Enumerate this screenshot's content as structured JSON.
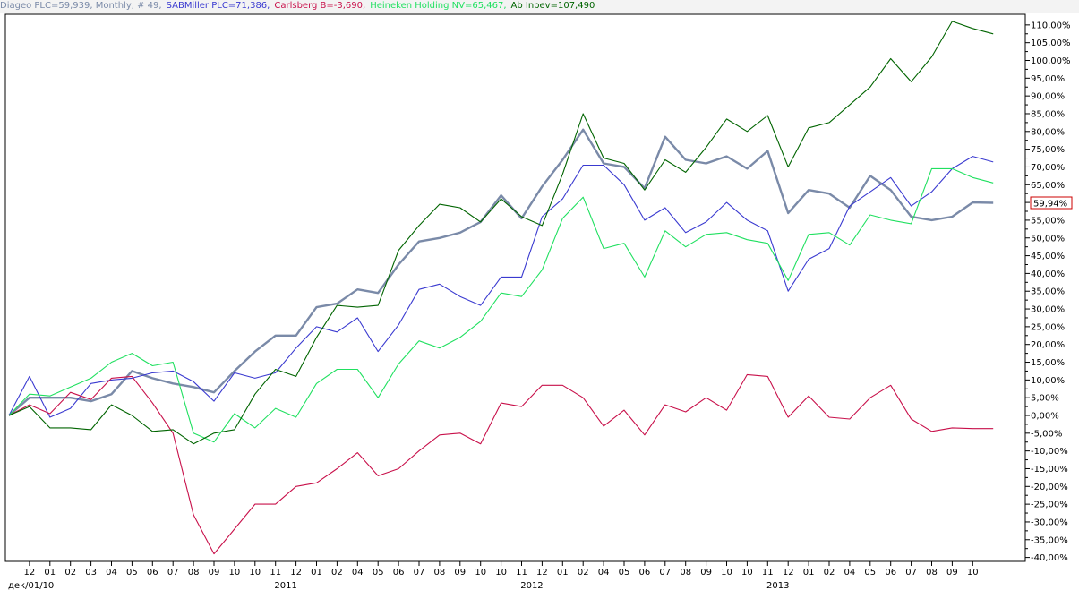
{
  "legend": {
    "items": [
      {
        "label": "Diageo PLC=59,939, Monthly, # 49,",
        "color": "#7a8aa8"
      },
      {
        "label": "SABMiller PLC=71,386,",
        "color": "#3a3ad0"
      },
      {
        "label": "Carlsberg B=-3,690,",
        "color": "#c8104a"
      },
      {
        "label": "Heineken Holding NV=65,467,",
        "color": "#20e060"
      },
      {
        "label": "Ab Inbev=107,490",
        "color": "#006400"
      }
    ]
  },
  "last_value_label": "59,94%",
  "chart_data": {
    "type": "line",
    "title": "",
    "xlabel": "",
    "ylabel": "",
    "ylim": [
      -40,
      112
    ],
    "grid": false,
    "legend_placement": "top",
    "y_ticks": [
      "110,00%",
      "105,00%",
      "100,00%",
      "95,00%",
      "90,00%",
      "85,00%",
      "80,00%",
      "75,00%",
      "70,00%",
      "65,00%",
      "60,00%",
      "55,00%",
      "50,00%",
      "45,00%",
      "40,00%",
      "35,00%",
      "30,00%",
      "25,00%",
      "20,00%",
      "15,00%",
      "10,00%",
      "5,00%",
      "0,00%",
      "-5,00%",
      "-10,00%",
      "-15,00%",
      "-20,00%",
      "-25,00%",
      "-30,00%",
      "-35,00%",
      "-40,00%"
    ],
    "x_ticks": [
      "12",
      "01",
      "02",
      "03",
      "04",
      "05",
      "06",
      "07",
      "08",
      "09",
      "10",
      "10",
      "11",
      "12",
      "01",
      "02",
      "04",
      "05",
      "06",
      "07",
      "08",
      "09",
      "10",
      "10",
      "11",
      "12",
      "01",
      "02",
      "04",
      "05",
      "06",
      "07",
      "08",
      "09",
      "10",
      "10",
      "11",
      "12",
      "01",
      "02",
      "04",
      "05",
      "06",
      "07",
      "08",
      "09",
      "10"
    ],
    "x_start_label": "дек/01/10",
    "year_labels": [
      {
        "label": "2011",
        "after_tick": 13.5
      },
      {
        "label": "2012",
        "after_tick": 25.5
      },
      {
        "label": "2013",
        "after_tick": 37.5
      }
    ],
    "series": [
      {
        "name": "Diageo PLC",
        "color": "#7a8aa8",
        "width": 2.4,
        "values": [
          0,
          5,
          5,
          5,
          4,
          6,
          12.5,
          10.5,
          9,
          8,
          6.5,
          12.5,
          18,
          22.5,
          22.5,
          30.5,
          31.5,
          35.5,
          34.5,
          42.5,
          49,
          50,
          51.5,
          54.5,
          62,
          55.5,
          64.5,
          72,
          80.5,
          71,
          70,
          64,
          78.5,
          72,
          71,
          73,
          69.5,
          74.5,
          57,
          63.5,
          62.5,
          58.5,
          67.5,
          63.5,
          56,
          55,
          56,
          60,
          59.9
        ]
      },
      {
        "name": "SABMiller PLC",
        "color": "#3a3ad0",
        "width": 1.1,
        "values": [
          0,
          11,
          -0.5,
          2,
          9,
          10,
          10.5,
          12,
          12.5,
          9.5,
          4,
          12,
          10.5,
          12,
          19,
          25,
          23.5,
          27.5,
          18,
          25.5,
          35.5,
          37,
          33.5,
          31,
          39,
          39,
          56,
          61,
          70.5,
          70.5,
          65,
          55,
          58.5,
          51.5,
          54.5,
          60,
          55,
          52,
          35,
          44,
          47,
          59,
          63,
          67,
          59,
          63,
          69.5,
          73,
          71.4
        ]
      },
      {
        "name": "Carlsberg B",
        "color": "#c8104a",
        "width": 1.1,
        "values": [
          0,
          3,
          0.5,
          6.5,
          4.5,
          10.5,
          11,
          3.5,
          -5,
          -28,
          -39,
          -32,
          -25,
          -25,
          -20,
          -19,
          -15,
          -10.5,
          -17,
          -15,
          -10,
          -5.5,
          -5,
          -8,
          3.5,
          2.5,
          8.5,
          8.5,
          5,
          -3,
          1.5,
          -5.5,
          3,
          1,
          5,
          1.5,
          11.5,
          11,
          -0.5,
          5.5,
          -0.5,
          -1,
          5,
          8.5,
          -1,
          -4.5,
          -3.5,
          -3.7,
          -3.7
        ]
      },
      {
        "name": "Heineken Holding NV",
        "color": "#20e060",
        "width": 1.1,
        "values": [
          0,
          6,
          5.5,
          8,
          10.5,
          15,
          17.5,
          14,
          15,
          -5,
          -7.5,
          0.5,
          -3.5,
          2,
          -0.5,
          9,
          13,
          13,
          5,
          14.5,
          21,
          19,
          22,
          26.5,
          34.5,
          33.5,
          41,
          55.5,
          61.5,
          47,
          48.5,
          39,
          52,
          47.5,
          51,
          51.5,
          49.5,
          48.5,
          38,
          51,
          51.5,
          48,
          56.5,
          55,
          54,
          69.5,
          69.5,
          67,
          65.5
        ]
      },
      {
        "name": "Ab Inbev",
        "color": "#006400",
        "width": 1.1,
        "values": [
          0,
          2.5,
          -3.5,
          -3.5,
          -4,
          3,
          0,
          -4.5,
          -4,
          -8,
          -5,
          -4,
          6,
          13,
          11,
          22,
          31,
          30.5,
          31,
          46.5,
          53.5,
          59.5,
          58.5,
          54.5,
          61,
          56,
          53.5,
          68,
          85,
          72.5,
          71,
          63.5,
          72,
          68.5,
          75.5,
          83.5,
          80,
          84.5,
          70,
          81,
          82.5,
          87.5,
          92.5,
          100.5,
          94,
          101,
          111,
          109,
          107.5
        ]
      }
    ]
  }
}
